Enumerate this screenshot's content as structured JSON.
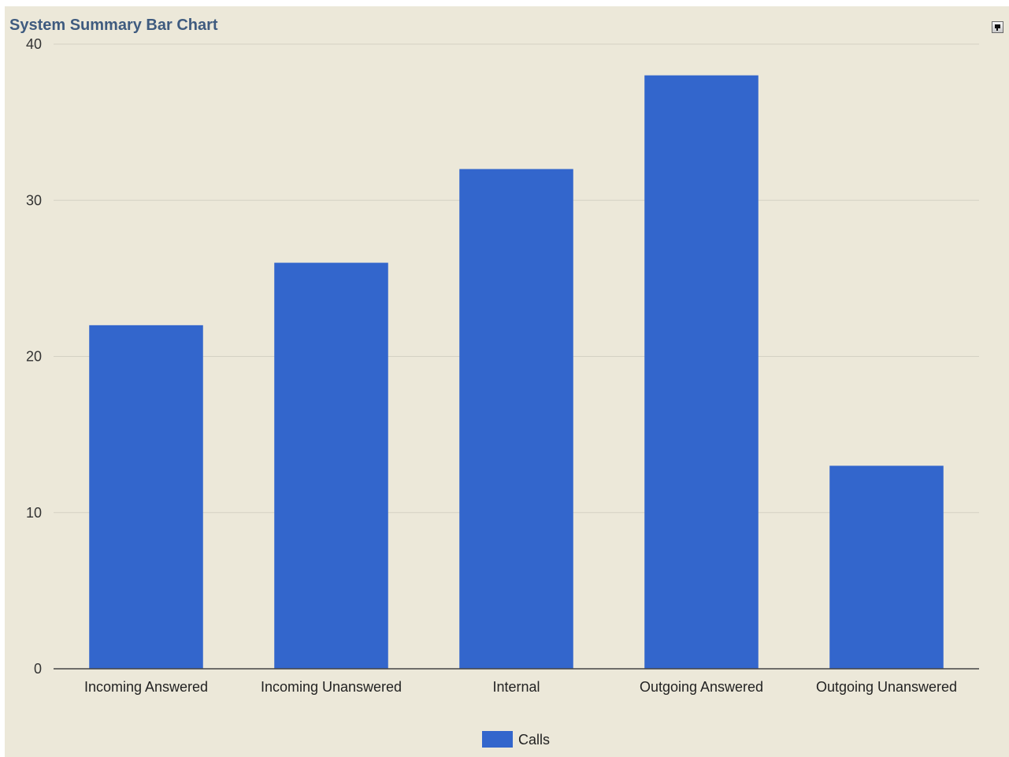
{
  "chart_data": {
    "type": "bar",
    "title": "System Summary Bar Chart",
    "categories": [
      "Incoming Answered",
      "Incoming Unanswered",
      "Internal",
      "Outgoing Answered",
      "Outgoing Unanswered"
    ],
    "series": [
      {
        "name": "Calls",
        "values": [
          22,
          26,
          32,
          38,
          13
        ],
        "color": "#3366cc"
      }
    ],
    "ylim": [
      0,
      40
    ],
    "yticks": [
      0,
      10,
      20,
      30,
      40
    ],
    "grid": true,
    "legend": "bottom",
    "xlabel": "",
    "ylabel": ""
  },
  "colors": {
    "background": "#ece8d9",
    "title": "#3f5b7f",
    "gridline": "#d4d1c4",
    "axis": "#444444"
  },
  "controls": {
    "menu_icon": "chart-menu-icon"
  }
}
